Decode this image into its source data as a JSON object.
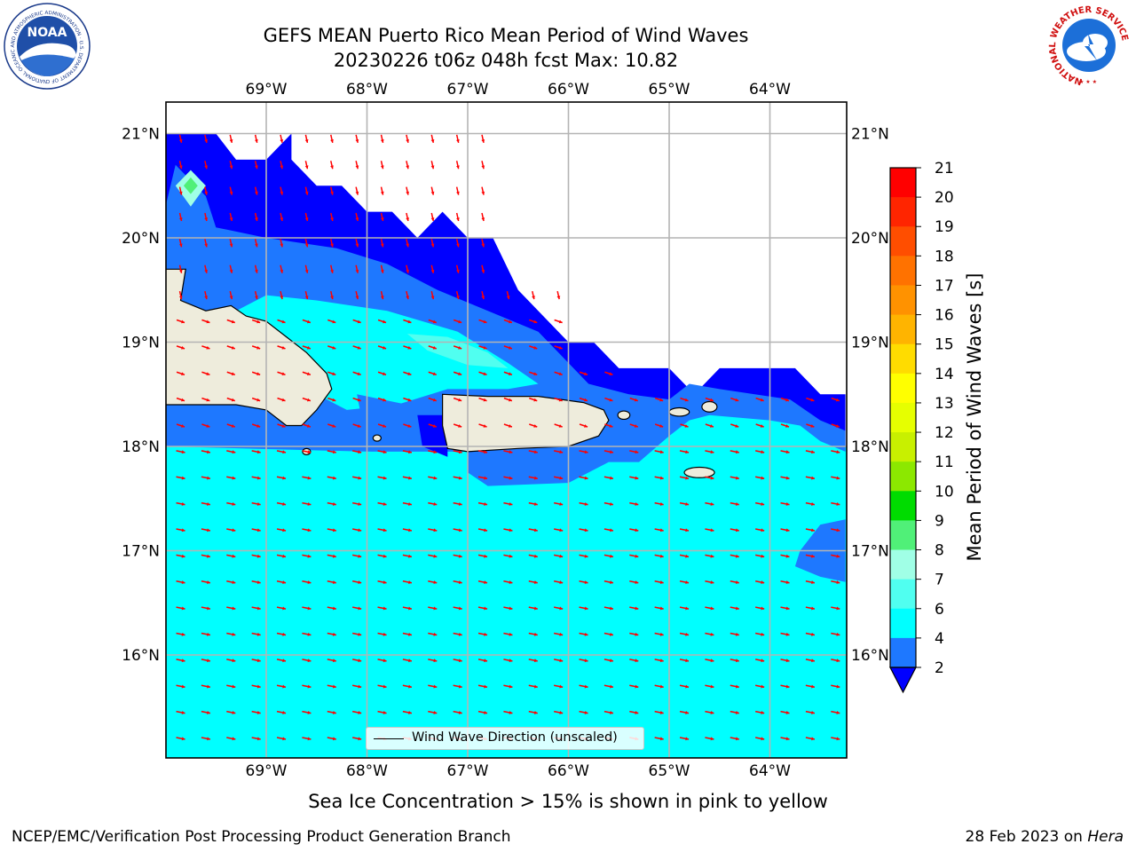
{
  "header": {
    "title_line1": "GEFS MEAN Puerto Rico Mean Period of Wind Waves",
    "title_line2": "20230226 t06z 048h fcst   Max: 10.82"
  },
  "map": {
    "region": "Puerto Rico",
    "lon_labels": [
      "69°W",
      "68°W",
      "67°W",
      "66°W",
      "65°W",
      "64°W"
    ],
    "lat_labels": [
      "21°N",
      "20°N",
      "19°N",
      "18°N",
      "17°N",
      "16°N"
    ],
    "extent": {
      "lon_min": -70.0,
      "lon_max": -63.25,
      "lat_min": 15.0,
      "lat_max": 21.3
    },
    "land_color": "#eeecdc",
    "arrow_color": "#ff0000",
    "vector_legend_label": "Wind Wave Direction (unscaled)"
  },
  "colorbar": {
    "title": "Mean Period of Wind Waves [s]",
    "tick_labels": [
      "21",
      "20",
      "19",
      "18",
      "17",
      "16",
      "15",
      "14",
      "13",
      "12",
      "11",
      "10",
      "9",
      "8",
      "7",
      "6",
      "4",
      "2"
    ],
    "extend_color": "#0000ff",
    "colors": [
      "#ff0000",
      "#ff2500",
      "#ff4e00",
      "#ff7200",
      "#ff9200",
      "#ffb400",
      "#ffdc00",
      "#ffff00",
      "#e6ff00",
      "#c8f000",
      "#8ce800",
      "#00dc00",
      "#50f078",
      "#a0ffe6",
      "#50fff0",
      "#00ffff",
      "#1e78ff"
    ]
  },
  "caption": "Sea Ice Concentration > 15% is shown in pink to yellow",
  "footer": {
    "left": "NCEP/EMC/Verification Post Processing Product Generation Branch",
    "right_prefix": "28 Feb 2023 on ",
    "right_italic": "Hera"
  },
  "logos": {
    "left_text": "NOAA",
    "left_ring_text": "NATIONAL OCEANIC AND ATMOSPHERIC ADMINISTRATION · U.S. DEPARTMENT OF COMMERCE",
    "right_ring_text": "NATIONAL WEATHER SERVICE"
  }
}
